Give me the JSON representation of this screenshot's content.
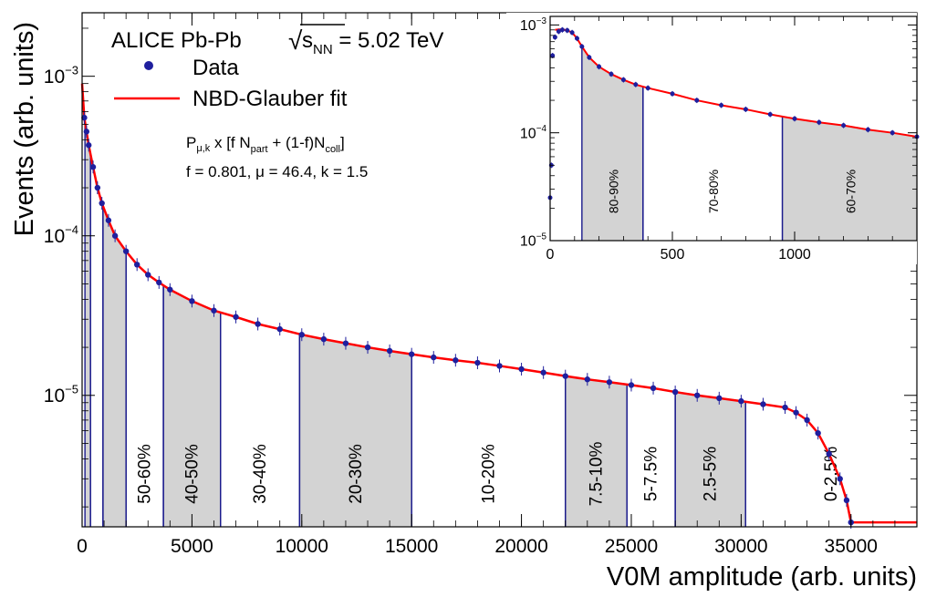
{
  "chart_data": [
    {
      "type": "scatter",
      "yscale": "log",
      "xlabel": "V0M amplitude (arb. units)",
      "ylabel": "Events (arb. units)",
      "xlim": [
        0,
        38000
      ],
      "ylim": [
        1.5e-06,
        0.0025
      ],
      "x_ticks": [
        {
          "v": 0,
          "label": "0"
        },
        {
          "v": 5000,
          "label": "5000"
        },
        {
          "v": 10000,
          "label": "10000"
        },
        {
          "v": 15000,
          "label": "15000"
        },
        {
          "v": 20000,
          "label": "20000"
        },
        {
          "v": 25000,
          "label": "25000"
        },
        {
          "v": 30000,
          "label": "30000"
        },
        {
          "v": 35000,
          "label": "35000"
        }
      ],
      "y_ticks": [
        {
          "v": 0.001,
          "base": "10",
          "exp": "−3"
        },
        {
          "v": 0.0001,
          "base": "10",
          "exp": "−4"
        },
        {
          "v": 1e-05,
          "base": "10",
          "exp": "−5"
        }
      ],
      "title_parts": {
        "pre": "ALICE Pb-Pb ",
        "sqrt": "s",
        "sub": "NN",
        "post": " = 5.02 TeV"
      },
      "legend": {
        "position": "top-left",
        "entries": [
          {
            "label": "Data",
            "marker": "circle",
            "color": "#1f1f9e"
          },
          {
            "label": "NBD-Glauber fit",
            "marker": "line",
            "color": "#ff0000"
          }
        ]
      },
      "formula": {
        "p": "P",
        "p_sub": "μ,k",
        "t1": " x [f N",
        "s1": "part",
        "t2": " + (1-f)N",
        "s2": "coll",
        "t3": "]",
        "params": "f = 0.801, μ = 46.4, k = 1.5"
      },
      "series": [
        {
          "name": "Data",
          "color": "#1f1f9e",
          "x": [
            100,
            200,
            300,
            500,
            700,
            900,
            1200,
            1500,
            2000,
            2500,
            3000,
            3500,
            4000,
            5000,
            6000,
            7000,
            8000,
            9000,
            10000,
            11000,
            12000,
            13000,
            14000,
            15000,
            16000,
            17000,
            18000,
            19000,
            20000,
            21000,
            22000,
            23000,
            24000,
            25000,
            26000,
            27000,
            28000,
            29000,
            30000,
            31000,
            32000,
            32500,
            33000,
            33500,
            34000,
            34500,
            34800,
            35000
          ],
          "y": [
            0.00055,
            0.00045,
            0.00037,
            0.00027,
            0.0002,
            0.00016,
            0.000125,
            0.0001,
            8e-05,
            6.6e-05,
            5.7e-05,
            5.1e-05,
            4.6e-05,
            3.9e-05,
            3.4e-05,
            3.1e-05,
            2.8e-05,
            2.6e-05,
            2.4e-05,
            2.25e-05,
            2.12e-05,
            2e-05,
            1.9e-05,
            1.81e-05,
            1.73e-05,
            1.66e-05,
            1.6e-05,
            1.53e-05,
            1.46e-05,
            1.39e-05,
            1.32e-05,
            1.26e-05,
            1.21e-05,
            1.16e-05,
            1.11e-05,
            1.05e-05,
            1e-05,
            9.6e-06,
            9.2e-06,
            8.8e-06,
            8.4e-06,
            7.8e-06,
            7e-06,
            5.8e-06,
            4.3e-06,
            3e-06,
            2.2e-06,
            1.6e-06
          ]
        },
        {
          "name": "NBD-Glauber fit",
          "color": "#ff0000",
          "x": [
            0,
            100,
            200,
            300,
            500,
            700,
            900,
            1200,
            1500,
            2000,
            2500,
            3000,
            3500,
            4000,
            5000,
            6000,
            7000,
            8000,
            9000,
            10000,
            11000,
            12000,
            13000,
            14000,
            15000,
            16000,
            17000,
            18000,
            19000,
            20000,
            21000,
            22000,
            23000,
            24000,
            25000,
            26000,
            27000,
            28000,
            29000,
            30000,
            31000,
            32000,
            32500,
            33000,
            33500,
            34000,
            34500,
            34800,
            35000,
            38000
          ],
          "y": [
            0.0009,
            0.00055,
            0.00045,
            0.00037,
            0.00027,
            0.0002,
            0.00016,
            0.000125,
            0.0001,
            8e-05,
            6.6e-05,
            5.7e-05,
            5.1e-05,
            4.6e-05,
            3.9e-05,
            3.4e-05,
            3.1e-05,
            2.8e-05,
            2.6e-05,
            2.4e-05,
            2.25e-05,
            2.12e-05,
            2e-05,
            1.9e-05,
            1.81e-05,
            1.73e-05,
            1.66e-05,
            1.6e-05,
            1.53e-05,
            1.46e-05,
            1.39e-05,
            1.32e-05,
            1.26e-05,
            1.21e-05,
            1.16e-05,
            1.11e-05,
            1.05e-05,
            1e-05,
            9.6e-06,
            9.2e-06,
            8.8e-06,
            8.4e-06,
            7.8e-06,
            7e-06,
            5.8e-06,
            4.3e-06,
            3e-06,
            2.2e-06,
            1.6e-06,
            1.6e-06
          ]
        }
      ],
      "centrality_classes": [
        {
          "label": "0-2.5%",
          "from": 30200,
          "to": 38000,
          "shaded": false
        },
        {
          "label": "2.5-5%",
          "from": 27000,
          "to": 30200,
          "shaded": true
        },
        {
          "label": "5-7.5%",
          "from": 24800,
          "to": 27000,
          "shaded": false
        },
        {
          "label": "7.5-10%",
          "from": 22000,
          "to": 24800,
          "shaded": true
        },
        {
          "label": "10-20%",
          "from": 15000,
          "to": 22000,
          "shaded": false
        },
        {
          "label": "20-30%",
          "from": 9900,
          "to": 15000,
          "shaded": true
        },
        {
          "label": "30-40%",
          "from": 6300,
          "to": 9900,
          "shaded": false
        },
        {
          "label": "40-50%",
          "from": 3700,
          "to": 6300,
          "shaded": true
        },
        {
          "label": "50-60%",
          "from": 2000,
          "to": 3700,
          "shaded": false
        },
        {
          "label": "",
          "from": 950,
          "to": 2000,
          "shaded": true
        },
        {
          "label": "",
          "from": 380,
          "to": 950,
          "shaded": false
        },
        {
          "label": "",
          "from": 130,
          "to": 380,
          "shaded": true
        }
      ]
    },
    {
      "type": "scatter",
      "yscale": "log",
      "xlim": [
        0,
        1500
      ],
      "ylim": [
        1e-05,
        0.0012
      ],
      "x_ticks": [
        {
          "v": 0,
          "label": "0"
        },
        {
          "v": 500,
          "label": "500"
        },
        {
          "v": 1000,
          "label": "1000"
        }
      ],
      "y_ticks": [
        {
          "v": 0.001,
          "base": "10",
          "exp": "−3"
        },
        {
          "v": 0.0001,
          "base": "10",
          "exp": "−4"
        },
        {
          "v": 1e-05,
          "base": "10",
          "exp": "−5"
        }
      ],
      "series": [
        {
          "name": "Data",
          "color": "#1f1f9e",
          "x": [
            0,
            5,
            10,
            20,
            35,
            50,
            70,
            90,
            110,
            130,
            160,
            200,
            250,
            300,
            350,
            400,
            500,
            600,
            700,
            800,
            900,
            1000,
            1100,
            1200,
            1300,
            1400,
            1500
          ],
          "y": [
            2.5e-05,
            5e-05,
            0.00052,
            0.00077,
            0.00087,
            0.0009,
            0.00089,
            0.00085,
            0.00075,
            0.00063,
            0.0005,
            0.00041,
            0.00035,
            0.00031,
            0.00028,
            0.00026,
            0.00023,
            0.0002,
            0.00018,
            0.000165,
            0.000148,
            0.000135,
            0.000125,
            0.000117,
            0.000107,
            0.0001,
            9.2e-05
          ]
        },
        {
          "name": "NBD-Glauber fit",
          "color": "#ff0000",
          "x": [
            20,
            35,
            50,
            70,
            90,
            110,
            130,
            160,
            200,
            250,
            300,
            350,
            400,
            500,
            600,
            700,
            800,
            900,
            1000,
            1100,
            1200,
            1300,
            1400,
            1500
          ],
          "y": [
            0.0009,
            0.00091,
            0.00091,
            0.00089,
            0.00085,
            0.00075,
            0.00063,
            0.0005,
            0.00041,
            0.00035,
            0.00031,
            0.00028,
            0.00026,
            0.00023,
            0.0002,
            0.00018,
            0.000165,
            0.000148,
            0.000135,
            0.000125,
            0.000117,
            0.000107,
            0.0001,
            9.2e-05
          ]
        }
      ],
      "centrality_classes": [
        {
          "label": "80-90%",
          "from": 130,
          "to": 380,
          "shaded": true
        },
        {
          "label": "70-80%",
          "from": 380,
          "to": 950,
          "shaded": false
        },
        {
          "label": "60-70%",
          "from": 950,
          "to": 1500,
          "shaded": true
        }
      ]
    }
  ]
}
